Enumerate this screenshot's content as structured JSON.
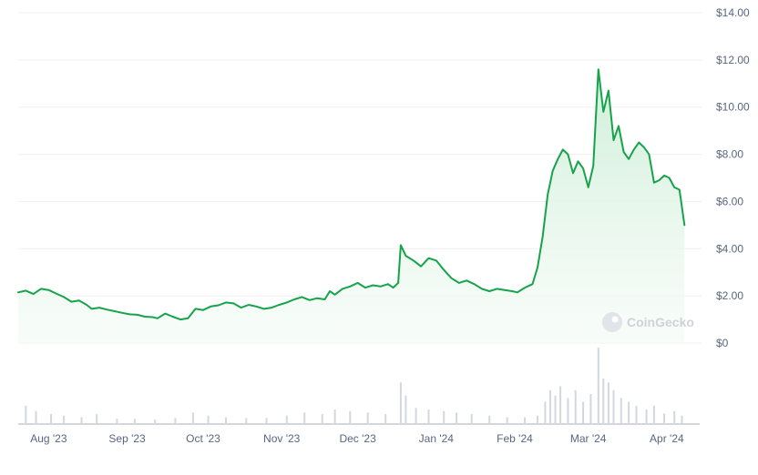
{
  "watermark": {
    "text": "CoinGecko"
  },
  "colors": {
    "line": "#16a34a",
    "area_top": "#cdeed7",
    "volume": "#d3d7de",
    "grid": "#eef0f3",
    "text": "#58667e"
  },
  "chart_data": [
    {
      "type": "area",
      "title": "",
      "xlabel": "",
      "ylabel": "",
      "grid": true,
      "ylim": [
        0,
        14
      ],
      "y_ticks": [
        {
          "value": 0,
          "label": "$0"
        },
        {
          "value": 2,
          "label": "$2.00"
        },
        {
          "value": 4,
          "label": "$4.00"
        },
        {
          "value": 6,
          "label": "$6.00"
        },
        {
          "value": 8,
          "label": "$8.00"
        },
        {
          "value": 10,
          "label": "$10.00"
        },
        {
          "value": 12,
          "label": "$12.00"
        },
        {
          "value": 14,
          "label": "$14.00"
        }
      ],
      "x_ticks": [
        {
          "date": "2023-08-01",
          "label": "Aug '23"
        },
        {
          "date": "2023-09-01",
          "label": "Sep '23"
        },
        {
          "date": "2023-10-01",
          "label": "Oct '23"
        },
        {
          "date": "2023-11-01",
          "label": "Nov '23"
        },
        {
          "date": "2023-12-01",
          "label": "Dec '23"
        },
        {
          "date": "2024-01-01",
          "label": "Jan '24"
        },
        {
          "date": "2024-02-01",
          "label": "Feb '24"
        },
        {
          "date": "2024-03-01",
          "label": "Mar '24"
        },
        {
          "date": "2024-04-01",
          "label": "Apr '24"
        }
      ],
      "xlim": [
        "2023-07-20",
        "2024-04-14"
      ],
      "series": [
        {
          "points": [
            [
              "2023-07-20",
              2.15
            ],
            [
              "2023-07-23",
              2.22
            ],
            [
              "2023-07-26",
              2.08
            ],
            [
              "2023-07-29",
              2.3
            ],
            [
              "2023-08-01",
              2.25
            ],
            [
              "2023-08-04",
              2.1
            ],
            [
              "2023-08-07",
              1.95
            ],
            [
              "2023-08-10",
              1.75
            ],
            [
              "2023-08-13",
              1.8
            ],
            [
              "2023-08-16",
              1.62
            ],
            [
              "2023-08-18",
              1.45
            ],
            [
              "2023-08-21",
              1.5
            ],
            [
              "2023-08-24",
              1.42
            ],
            [
              "2023-08-27",
              1.35
            ],
            [
              "2023-08-30",
              1.28
            ],
            [
              "2023-09-02",
              1.22
            ],
            [
              "2023-09-05",
              1.2
            ],
            [
              "2023-09-08",
              1.12
            ],
            [
              "2023-09-11",
              1.1
            ],
            [
              "2023-09-13",
              1.05
            ],
            [
              "2023-09-16",
              1.25
            ],
            [
              "2023-09-19",
              1.12
            ],
            [
              "2023-09-22",
              1.0
            ],
            [
              "2023-09-25",
              1.05
            ],
            [
              "2023-09-28",
              1.45
            ],
            [
              "2023-10-01",
              1.4
            ],
            [
              "2023-10-04",
              1.55
            ],
            [
              "2023-10-07",
              1.6
            ],
            [
              "2023-10-10",
              1.72
            ],
            [
              "2023-10-13",
              1.68
            ],
            [
              "2023-10-16",
              1.5
            ],
            [
              "2023-10-19",
              1.62
            ],
            [
              "2023-10-22",
              1.55
            ],
            [
              "2023-10-25",
              1.45
            ],
            [
              "2023-10-28",
              1.5
            ],
            [
              "2023-10-31",
              1.62
            ],
            [
              "2023-11-03",
              1.72
            ],
            [
              "2023-11-06",
              1.85
            ],
            [
              "2023-11-09",
              1.95
            ],
            [
              "2023-11-12",
              1.82
            ],
            [
              "2023-11-15",
              1.9
            ],
            [
              "2023-11-18",
              1.85
            ],
            [
              "2023-11-20",
              2.2
            ],
            [
              "2023-11-22",
              2.05
            ],
            [
              "2023-11-25",
              2.3
            ],
            [
              "2023-11-28",
              2.4
            ],
            [
              "2023-12-01",
              2.55
            ],
            [
              "2023-12-04",
              2.35
            ],
            [
              "2023-12-07",
              2.45
            ],
            [
              "2023-12-10",
              2.4
            ],
            [
              "2023-12-13",
              2.5
            ],
            [
              "2023-12-15",
              2.35
            ],
            [
              "2023-12-17",
              2.55
            ],
            [
              "2023-12-18",
              4.15
            ],
            [
              "2023-12-20",
              3.7
            ],
            [
              "2023-12-23",
              3.5
            ],
            [
              "2023-12-26",
              3.25
            ],
            [
              "2023-12-29",
              3.6
            ],
            [
              "2024-01-01",
              3.5
            ],
            [
              "2024-01-04",
              3.1
            ],
            [
              "2024-01-07",
              2.75
            ],
            [
              "2024-01-10",
              2.55
            ],
            [
              "2024-01-13",
              2.65
            ],
            [
              "2024-01-16",
              2.5
            ],
            [
              "2024-01-19",
              2.3
            ],
            [
              "2024-01-22",
              2.2
            ],
            [
              "2024-01-25",
              2.3
            ],
            [
              "2024-01-28",
              2.25
            ],
            [
              "2024-01-31",
              2.2
            ],
            [
              "2024-02-02",
              2.15
            ],
            [
              "2024-02-05",
              2.35
            ],
            [
              "2024-02-08",
              2.5
            ],
            [
              "2024-02-10",
              3.2
            ],
            [
              "2024-02-12",
              4.5
            ],
            [
              "2024-02-14",
              6.3
            ],
            [
              "2024-02-16",
              7.3
            ],
            [
              "2024-02-18",
              7.8
            ],
            [
              "2024-02-20",
              8.2
            ],
            [
              "2024-02-22",
              8.0
            ],
            [
              "2024-02-24",
              7.2
            ],
            [
              "2024-02-26",
              7.7
            ],
            [
              "2024-02-28",
              7.4
            ],
            [
              "2024-03-01",
              6.6
            ],
            [
              "2024-03-03",
              7.5
            ],
            [
              "2024-03-05",
              11.6
            ],
            [
              "2024-03-07",
              9.8
            ],
            [
              "2024-03-09",
              10.7
            ],
            [
              "2024-03-11",
              8.6
            ],
            [
              "2024-03-13",
              9.2
            ],
            [
              "2024-03-15",
              8.1
            ],
            [
              "2024-03-17",
              7.8
            ],
            [
              "2024-03-19",
              8.2
            ],
            [
              "2024-03-21",
              8.5
            ],
            [
              "2024-03-23",
              8.3
            ],
            [
              "2024-03-25",
              8.0
            ],
            [
              "2024-03-27",
              6.8
            ],
            [
              "2024-03-29",
              6.9
            ],
            [
              "2024-03-31",
              7.1
            ],
            [
              "2024-04-02",
              7.0
            ],
            [
              "2024-04-04",
              6.6
            ],
            [
              "2024-04-06",
              6.5
            ],
            [
              "2024-04-08",
              5.0
            ]
          ]
        }
      ]
    },
    {
      "type": "bar",
      "title": "",
      "series": [
        {
          "points": [
            [
              "2023-07-23",
              0.25
            ],
            [
              "2023-07-27",
              0.18
            ],
            [
              "2023-08-02",
              0.14
            ],
            [
              "2023-08-07",
              0.12
            ],
            [
              "2023-08-14",
              0.1
            ],
            [
              "2023-08-20",
              0.14
            ],
            [
              "2023-08-28",
              0.08
            ],
            [
              "2023-09-04",
              0.08
            ],
            [
              "2023-09-12",
              0.07
            ],
            [
              "2023-09-20",
              0.09
            ],
            [
              "2023-09-27",
              0.16
            ],
            [
              "2023-10-03",
              0.12
            ],
            [
              "2023-10-10",
              0.1
            ],
            [
              "2023-10-18",
              0.09
            ],
            [
              "2023-10-26",
              0.09
            ],
            [
              "2023-11-03",
              0.12
            ],
            [
              "2023-11-10",
              0.16
            ],
            [
              "2023-11-17",
              0.14
            ],
            [
              "2023-11-22",
              0.2
            ],
            [
              "2023-11-28",
              0.18
            ],
            [
              "2023-12-05",
              0.16
            ],
            [
              "2023-12-12",
              0.14
            ],
            [
              "2023-12-18",
              0.55
            ],
            [
              "2023-12-20",
              0.38
            ],
            [
              "2023-12-24",
              0.22
            ],
            [
              "2023-12-29",
              0.2
            ],
            [
              "2024-01-04",
              0.18
            ],
            [
              "2024-01-09",
              0.16
            ],
            [
              "2024-01-15",
              0.14
            ],
            [
              "2024-01-22",
              0.12
            ],
            [
              "2024-01-29",
              0.1
            ],
            [
              "2024-02-05",
              0.1
            ],
            [
              "2024-02-10",
              0.12
            ],
            [
              "2024-02-13",
              0.3
            ],
            [
              "2024-02-15",
              0.45
            ],
            [
              "2024-02-17",
              0.38
            ],
            [
              "2024-02-19",
              0.5
            ],
            [
              "2024-02-22",
              0.35
            ],
            [
              "2024-02-25",
              0.45
            ],
            [
              "2024-02-28",
              0.3
            ],
            [
              "2024-03-02",
              0.4
            ],
            [
              "2024-03-05",
              1.0
            ],
            [
              "2024-03-07",
              0.6
            ],
            [
              "2024-03-09",
              0.55
            ],
            [
              "2024-03-11",
              0.45
            ],
            [
              "2024-03-14",
              0.35
            ],
            [
              "2024-03-17",
              0.3
            ],
            [
              "2024-03-20",
              0.25
            ],
            [
              "2024-03-24",
              0.2
            ],
            [
              "2024-03-27",
              0.25
            ],
            [
              "2024-03-31",
              0.15
            ],
            [
              "2024-04-04",
              0.18
            ],
            [
              "2024-04-07",
              0.12
            ]
          ]
        }
      ]
    }
  ]
}
